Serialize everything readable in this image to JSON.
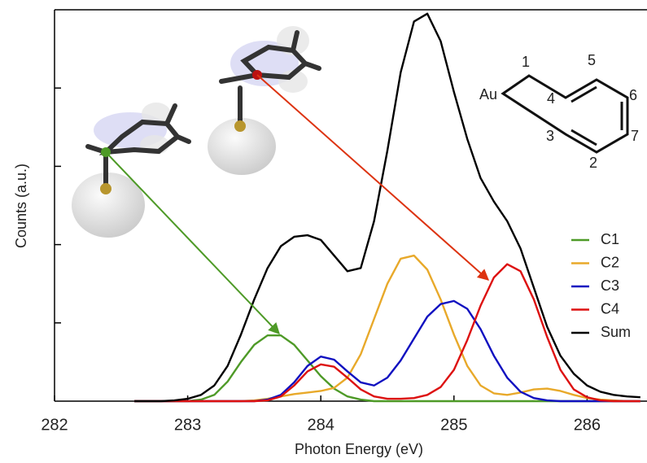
{
  "chart_data": {
    "type": "line",
    "x_label": "Photon Energy (eV)",
    "y_label": "Counts (a.u.)",
    "x": [
      282.6,
      282.7,
      282.8,
      282.9,
      283.0,
      283.1,
      283.2,
      283.3,
      283.4,
      283.5,
      283.6,
      283.7,
      283.8,
      283.9,
      284.0,
      284.1,
      284.2,
      284.3,
      284.4,
      284.5,
      284.6,
      284.7,
      284.8,
      284.9,
      285.0,
      285.1,
      285.2,
      285.3,
      285.4,
      285.5,
      285.6,
      285.7,
      285.8,
      285.9,
      286.0,
      286.1,
      286.2,
      286.3,
      286.4
    ],
    "series": [
      {
        "name": "C1",
        "color": "#4e9a27",
        "values": [
          0,
          0,
          0,
          0,
          0,
          0.02,
          0.08,
          0.25,
          0.5,
          0.72,
          0.84,
          0.84,
          0.72,
          0.52,
          0.32,
          0.16,
          0.06,
          0.02,
          0,
          0,
          0,
          0,
          0,
          0,
          0,
          0,
          0,
          0,
          0,
          0,
          0,
          0,
          0,
          0,
          0,
          0,
          0,
          0,
          0
        ]
      },
      {
        "name": "C2",
        "color": "#e8a92a",
        "values": [
          0,
          0,
          0,
          0,
          0,
          0,
          0,
          0,
          0,
          0.01,
          0.03,
          0.06,
          0.09,
          0.11,
          0.13,
          0.17,
          0.3,
          0.6,
          1.05,
          1.5,
          1.82,
          1.86,
          1.68,
          1.3,
          0.85,
          0.45,
          0.2,
          0.1,
          0.08,
          0.11,
          0.15,
          0.16,
          0.13,
          0.08,
          0.04,
          0.02,
          0.01,
          0,
          0
        ]
      },
      {
        "name": "C3",
        "color": "#1010c0",
        "values": [
          0,
          0,
          0,
          0,
          0,
          0,
          0,
          0,
          0,
          0,
          0.02,
          0.08,
          0.24,
          0.45,
          0.57,
          0.53,
          0.38,
          0.24,
          0.2,
          0.3,
          0.52,
          0.8,
          1.08,
          1.24,
          1.28,
          1.18,
          0.92,
          0.58,
          0.3,
          0.12,
          0.04,
          0.01,
          0,
          0,
          0,
          0,
          0,
          0,
          0
        ]
      },
      {
        "name": "C4",
        "color": "#dd1111",
        "values": [
          0,
          0,
          0,
          0,
          0,
          0,
          0,
          0,
          0,
          0,
          0.01,
          0.06,
          0.2,
          0.38,
          0.47,
          0.44,
          0.3,
          0.15,
          0.06,
          0.03,
          0.03,
          0.04,
          0.08,
          0.18,
          0.4,
          0.78,
          1.22,
          1.58,
          1.75,
          1.66,
          1.3,
          0.82,
          0.4,
          0.15,
          0.05,
          0.01,
          0,
          0,
          0
        ]
      },
      {
        "name": "Sum",
        "color": "#000000",
        "values": [
          0,
          0,
          0,
          0.01,
          0.03,
          0.08,
          0.2,
          0.45,
          0.85,
          1.3,
          1.7,
          1.98,
          2.1,
          2.12,
          2.06,
          1.86,
          1.66,
          1.7,
          2.3,
          3.2,
          4.2,
          4.85,
          4.95,
          4.6,
          3.95,
          3.35,
          2.85,
          2.55,
          2.3,
          1.95,
          1.45,
          0.95,
          0.58,
          0.35,
          0.2,
          0.12,
          0.08,
          0.06,
          0.05
        ]
      }
    ],
    "xlim": [
      282,
      286.45
    ],
    "xticks": [
      282,
      283,
      284,
      285,
      286
    ],
    "ylim": [
      0,
      5
    ],
    "yticks": [
      1,
      2,
      3,
      4
    ],
    "legend": "lower right",
    "structure_labels": [
      "Au",
      "1",
      "5",
      "4",
      "6",
      "3",
      "7",
      "2"
    ]
  }
}
